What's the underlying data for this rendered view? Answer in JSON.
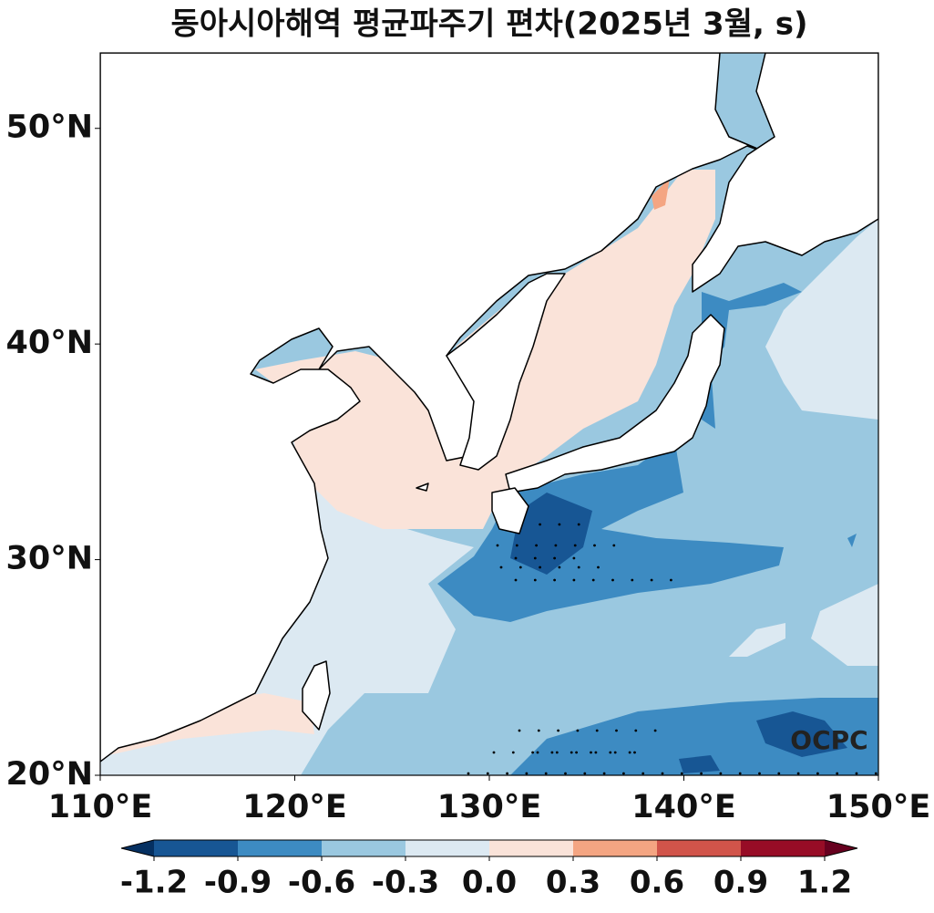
{
  "title": "동아시아해역 평균파주기 편차(2025년 3월, s)",
  "map": {
    "xlim": [
      110,
      150
    ],
    "ylim": [
      20,
      53.5
    ],
    "xticks": [
      {
        "value": 110,
        "label": "110°E"
      },
      {
        "value": 120,
        "label": "120°E"
      },
      {
        "value": 130,
        "label": "130°E"
      },
      {
        "value": 140,
        "label": "140°E"
      },
      {
        "value": 150,
        "label": "150°E"
      }
    ],
    "yticks": [
      {
        "value": 20,
        "label": "20°N"
      },
      {
        "value": 30,
        "label": "30°N"
      },
      {
        "value": 40,
        "label": "40°N"
      },
      {
        "value": 50,
        "label": "50°N"
      }
    ],
    "watermark": "OCPC"
  },
  "colorbar": {
    "levels": [
      -1.2,
      -0.9,
      -0.6,
      -0.3,
      {
        "value": 0,
        "label": "0.0"
      },
      0.3,
      0.6,
      0.9,
      1.2
    ],
    "colors": [
      "#175694",
      "#3d8bc2",
      "#9ac8e0",
      "#dce9f2",
      "#fae3d9",
      "#f4a582",
      "#d1544a",
      "#970c26"
    ],
    "extend_colors": [
      "#053061",
      "#67001f"
    ]
  }
}
